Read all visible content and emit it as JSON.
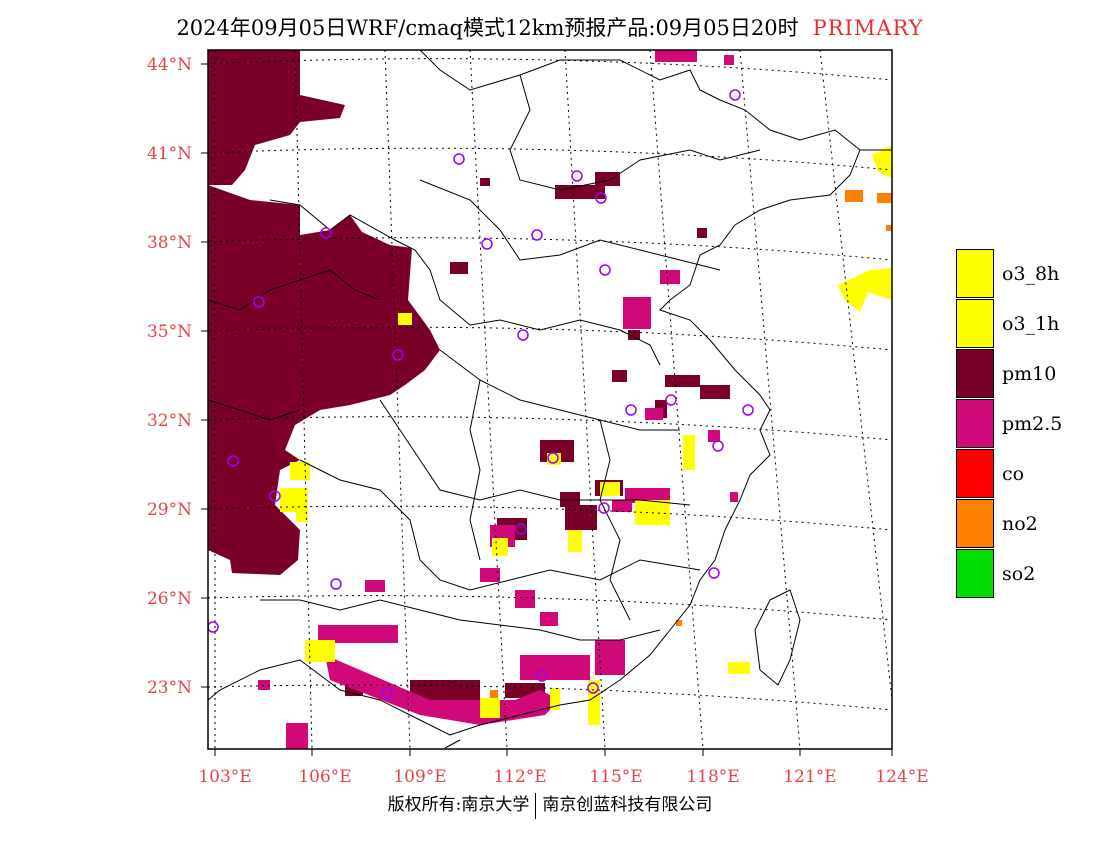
{
  "title": {
    "main": "2024年09月05日WRF/cmaq模式12km预报产品:09月05日20时",
    "tag": "PRIMARY"
  },
  "map": {
    "lon_labels": [
      "103°E",
      "106°E",
      "109°E",
      "112°E",
      "115°E",
      "118°E",
      "121°E",
      "124°E"
    ],
    "lat_labels": [
      "44°N",
      "41°N",
      "38°N",
      "35°N",
      "32°N",
      "29°N",
      "26°N",
      "23°N"
    ],
    "colors": {
      "o3_8h": "#ffff00",
      "o3_1h": "#ffff00",
      "pm10": "#7a0028",
      "pm25": "#d0087a",
      "co": "#ff0000",
      "no2": "#ff7f00",
      "so2": "#00dd00",
      "tick_label": "#e54545",
      "city_marker": "#9a00ff"
    }
  },
  "legend": {
    "items": [
      {
        "label": "o3_8h",
        "color": "#ffff00"
      },
      {
        "label": "o3_1h",
        "color": "#ffff00"
      },
      {
        "label": "pm10",
        "color": "#7a0028"
      },
      {
        "label": "pm2.5",
        "color": "#d0087a"
      },
      {
        "label": "co",
        "color": "#ff0000"
      },
      {
        "label": "no2",
        "color": "#ff7f00"
      },
      {
        "label": "so2",
        "color": "#00dd00"
      }
    ]
  },
  "footer": {
    "left": "版权所有:南京大学",
    "right": "南京创蓝科技有限公司"
  }
}
